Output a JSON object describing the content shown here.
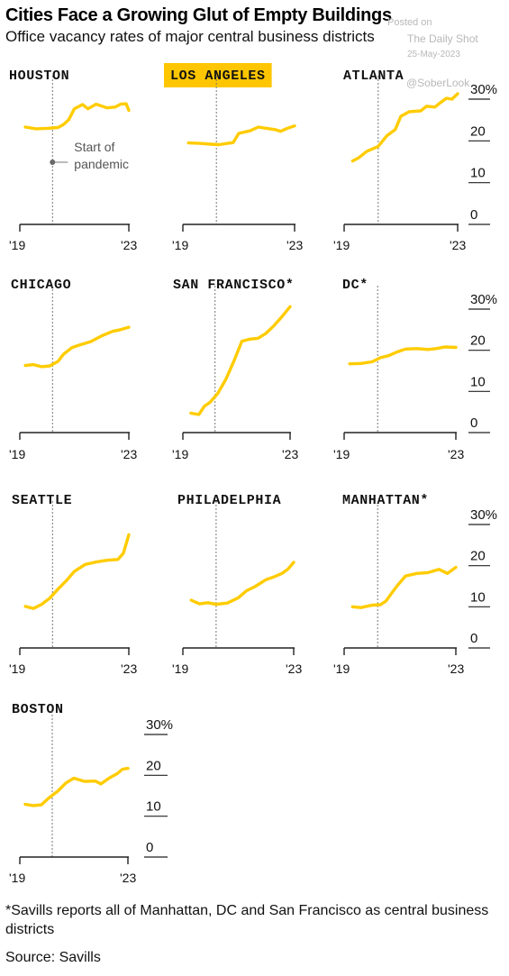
{
  "header": {
    "title": "Cities Face a Growing Glut of Empty Buildings",
    "subtitle": "Office vacancy rates of major central business districts"
  },
  "watermark": {
    "posted": "Posted on",
    "site": "The Daily Shot",
    "date": "25-May-2023",
    "handle": "@SoberLook"
  },
  "footnote": "*Savills reports all of Manhattan, DC and San Francisco as central business districts",
  "source": "Source: Savills",
  "colors": {
    "line": "#ffcc00",
    "highlight": "#ffc600",
    "axis": "#222222",
    "pandemic_line": "#777777"
  },
  "chart_data": {
    "type": "line",
    "x_unit": "year",
    "x_ticks": [
      "'19",
      "'23"
    ],
    "x_range": [
      2019,
      2023
    ],
    "pandemic_x": 2020.2,
    "y_ticks": [
      "30%",
      "20",
      "10",
      "0"
    ],
    "y_range": [
      0,
      30
    ],
    "y_tick_values": [
      30,
      20,
      10,
      0
    ],
    "annotation": {
      "line1": "Start of",
      "line2": "pandemic"
    },
    "panels": [
      {
        "name": "HOUSTON",
        "highlight": false,
        "x": [
          2019.2,
          2019.6,
          2020.0,
          2020.4,
          2020.6,
          2020.8,
          2021.0,
          2021.3,
          2021.5,
          2021.8,
          2022.2,
          2022.5,
          2022.7,
          2022.9,
          2023.0
        ],
        "y": [
          23.3,
          22.9,
          23.0,
          23.2,
          23.9,
          25.1,
          27.7,
          28.7,
          27.7,
          28.8,
          27.9,
          28.1,
          28.8,
          28.9,
          27.3
        ]
      },
      {
        "name": "LOS ANGELES",
        "highlight": true,
        "x": [
          2019.2,
          2019.6,
          2020.0,
          2020.3,
          2020.6,
          2020.8,
          2021.0,
          2021.4,
          2021.7,
          2022.0,
          2022.3,
          2022.5,
          2022.7,
          2023.0
        ],
        "y": [
          19.5,
          19.4,
          19.2,
          19.1,
          19.4,
          19.6,
          21.8,
          22.4,
          23.3,
          23.0,
          22.7,
          22.3,
          22.9,
          23.6
        ]
      },
      {
        "name": "ATLANTA",
        "highlight": false,
        "x": [
          2019.3,
          2019.5,
          2019.8,
          2020.2,
          2020.5,
          2020.8,
          2021.0,
          2021.3,
          2021.7,
          2021.9,
          2022.2,
          2022.4,
          2022.6,
          2022.8,
          2023.0
        ],
        "y": [
          15.2,
          15.9,
          17.5,
          18.7,
          21.2,
          22.7,
          25.9,
          27.0,
          27.2,
          28.3,
          28.1,
          29.2,
          30.2,
          30.0,
          31.3
        ]
      },
      {
        "name": "CHICAGO",
        "highlight": false,
        "x": [
          2019.2,
          2019.5,
          2019.8,
          2020.1,
          2020.4,
          2020.6,
          2020.9,
          2021.2,
          2021.6,
          2022.0,
          2022.4,
          2022.7,
          2023.0
        ],
        "y": [
          16.3,
          16.5,
          16.0,
          16.2,
          17.3,
          19.0,
          20.6,
          21.3,
          22.1,
          23.5,
          24.6,
          25.0,
          25.6
        ]
      },
      {
        "name": "SAN FRANCISCO*",
        "highlight": false,
        "x": [
          2019.3,
          2019.6,
          2019.8,
          2020.0,
          2020.3,
          2020.6,
          2020.9,
          2021.2,
          2021.5,
          2021.8,
          2022.1,
          2022.4,
          2022.7,
          2023.0
        ],
        "y": [
          4.7,
          4.4,
          6.4,
          7.3,
          9.5,
          12.9,
          17.3,
          22.2,
          22.7,
          22.9,
          24.1,
          26.0,
          28.2,
          30.6
        ]
      },
      {
        "name": "DC*",
        "highlight": false,
        "x": [
          2019.2,
          2019.6,
          2020.0,
          2020.3,
          2020.6,
          2020.9,
          2021.2,
          2021.6,
          2022.0,
          2022.3,
          2022.6,
          2023.0
        ],
        "y": [
          16.7,
          16.8,
          17.2,
          18.2,
          18.7,
          19.6,
          20.3,
          20.4,
          20.2,
          20.4,
          20.8,
          20.7
        ]
      },
      {
        "name": "SEATTLE",
        "highlight": false,
        "x": [
          2019.2,
          2019.5,
          2019.8,
          2020.1,
          2020.4,
          2020.7,
          2021.0,
          2021.4,
          2021.8,
          2022.2,
          2022.6,
          2022.8,
          2023.0
        ],
        "y": [
          10.1,
          9.6,
          10.6,
          12.1,
          14.3,
          16.3,
          18.6,
          20.3,
          20.9,
          21.3,
          21.5,
          23.0,
          27.5
        ]
      },
      {
        "name": "PHILADELPHIA",
        "highlight": false,
        "x": [
          2019.3,
          2019.6,
          2019.9,
          2020.2,
          2020.6,
          2021.0,
          2021.3,
          2021.6,
          2022.0,
          2022.3,
          2022.6,
          2022.8,
          2023.0
        ],
        "y": [
          11.6,
          10.7,
          11.0,
          10.6,
          10.9,
          12.2,
          13.9,
          14.9,
          16.6,
          17.3,
          18.2,
          19.2,
          20.8
        ]
      },
      {
        "name": "MANHATTAN*",
        "highlight": false,
        "x": [
          2019.3,
          2019.6,
          2020.0,
          2020.3,
          2020.5,
          2020.7,
          2020.9,
          2021.2,
          2021.6,
          2022.0,
          2022.4,
          2022.7,
          2023.0
        ],
        "y": [
          10.0,
          9.8,
          10.4,
          10.5,
          11.4,
          13.3,
          15.1,
          17.5,
          18.1,
          18.3,
          19.1,
          18.1,
          19.6
        ]
      },
      {
        "name": "BOSTON",
        "highlight": false,
        "x": [
          2019.2,
          2019.5,
          2019.8,
          2020.1,
          2020.4,
          2020.7,
          2021.0,
          2021.4,
          2021.8,
          2022.0,
          2022.3,
          2022.6,
          2022.8,
          2023.0
        ],
        "y": [
          12.9,
          12.6,
          12.8,
          14.6,
          16.1,
          18.1,
          19.3,
          18.5,
          18.6,
          17.9,
          19.3,
          20.4,
          21.5,
          21.7
        ]
      }
    ]
  }
}
